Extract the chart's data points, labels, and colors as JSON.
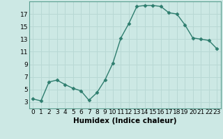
{
  "x": [
    0,
    1,
    2,
    3,
    4,
    5,
    6,
    7,
    8,
    9,
    10,
    11,
    12,
    13,
    14,
    15,
    16,
    17,
    18,
    19,
    20,
    21,
    22,
    23
  ],
  "y": [
    3.5,
    3.2,
    6.2,
    6.5,
    5.8,
    5.2,
    4.8,
    3.3,
    4.5,
    6.5,
    9.2,
    13.2,
    15.5,
    18.2,
    18.35,
    18.35,
    18.2,
    17.2,
    17.0,
    15.3,
    13.2,
    13.0,
    12.8,
    11.5
  ],
  "line_color": "#2e7d6e",
  "marker": "D",
  "marker_size": 2.5,
  "bg_color": "#cce8e4",
  "grid_color": "#b8d8d4",
  "xlabel": "Humidex (Indice chaleur)",
  "xlim": [
    -0.5,
    23.5
  ],
  "ylim": [
    2,
    19
  ],
  "yticks": [
    3,
    5,
    7,
    9,
    11,
    13,
    15,
    17
  ],
  "xticks": [
    0,
    1,
    2,
    3,
    4,
    5,
    6,
    7,
    8,
    9,
    10,
    11,
    12,
    13,
    14,
    15,
    16,
    17,
    18,
    19,
    20,
    21,
    22,
    23
  ],
  "xlabel_fontsize": 7.5,
  "tick_fontsize": 6.5,
  "line_width": 1.0
}
